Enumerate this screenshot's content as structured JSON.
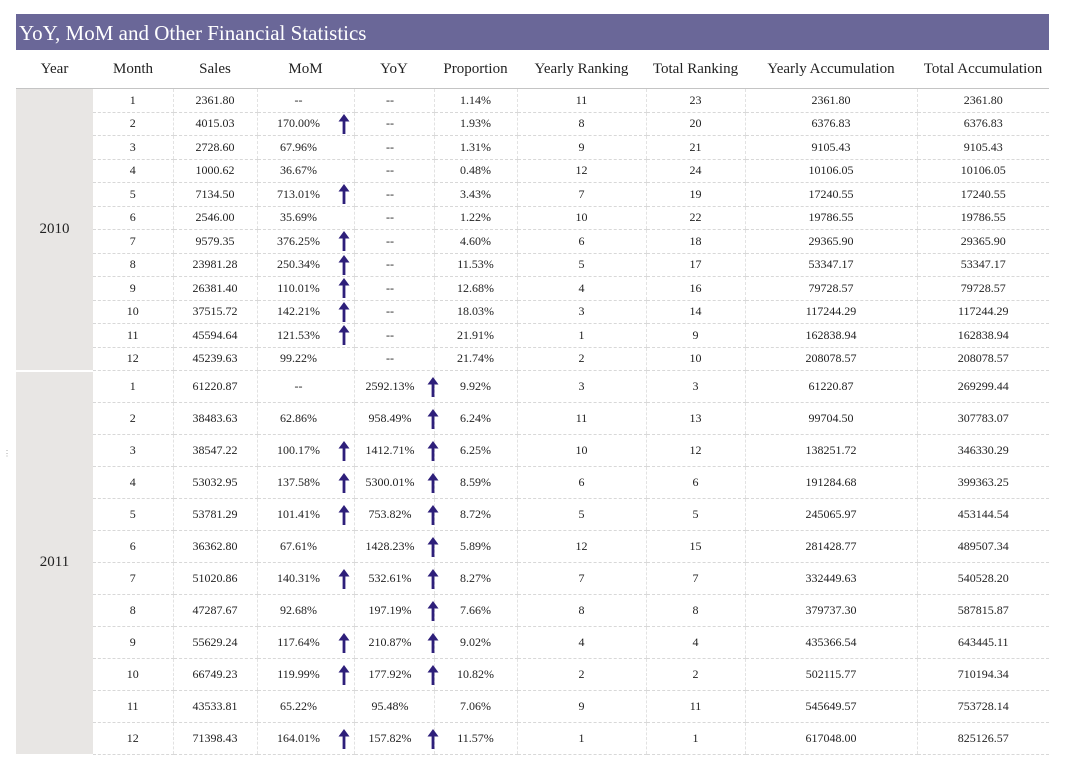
{
  "title": "YoY, MoM and Other Financial Statistics",
  "colors": {
    "header_bg": "#6a6798",
    "year_cell_bg": "#e8e6e4",
    "arrow": "#2e1f7a"
  },
  "columns": [
    "Year",
    "Month",
    "Sales",
    "MoM",
    "YoY",
    "Proportion",
    "Yearly Ranking",
    "Total Ranking",
    "Yearly Accumulation",
    "Total Accumulation"
  ],
  "arrow_icon": "arrow-up-icon",
  "years": [
    {
      "year": "2010",
      "rows": [
        {
          "month": "1",
          "sales": "2361.80",
          "mom": "--",
          "mom_up": false,
          "yoy": "--",
          "yoy_up": false,
          "proportion": "1.14%",
          "yearly_rank": "11",
          "total_rank": "23",
          "yearly_acc": "2361.80",
          "total_acc": "2361.80"
        },
        {
          "month": "2",
          "sales": "4015.03",
          "mom": "170.00%",
          "mom_up": true,
          "yoy": "--",
          "yoy_up": false,
          "proportion": "1.93%",
          "yearly_rank": "8",
          "total_rank": "20",
          "yearly_acc": "6376.83",
          "total_acc": "6376.83"
        },
        {
          "month": "3",
          "sales": "2728.60",
          "mom": "67.96%",
          "mom_up": false,
          "yoy": "--",
          "yoy_up": false,
          "proportion": "1.31%",
          "yearly_rank": "9",
          "total_rank": "21",
          "yearly_acc": "9105.43",
          "total_acc": "9105.43"
        },
        {
          "month": "4",
          "sales": "1000.62",
          "mom": "36.67%",
          "mom_up": false,
          "yoy": "--",
          "yoy_up": false,
          "proportion": "0.48%",
          "yearly_rank": "12",
          "total_rank": "24",
          "yearly_acc": "10106.05",
          "total_acc": "10106.05"
        },
        {
          "month": "5",
          "sales": "7134.50",
          "mom": "713.01%",
          "mom_up": true,
          "yoy": "--",
          "yoy_up": false,
          "proportion": "3.43%",
          "yearly_rank": "7",
          "total_rank": "19",
          "yearly_acc": "17240.55",
          "total_acc": "17240.55"
        },
        {
          "month": "6",
          "sales": "2546.00",
          "mom": "35.69%",
          "mom_up": false,
          "yoy": "--",
          "yoy_up": false,
          "proportion": "1.22%",
          "yearly_rank": "10",
          "total_rank": "22",
          "yearly_acc": "19786.55",
          "total_acc": "19786.55"
        },
        {
          "month": "7",
          "sales": "9579.35",
          "mom": "376.25%",
          "mom_up": true,
          "yoy": "--",
          "yoy_up": false,
          "proportion": "4.60%",
          "yearly_rank": "6",
          "total_rank": "18",
          "yearly_acc": "29365.90",
          "total_acc": "29365.90"
        },
        {
          "month": "8",
          "sales": "23981.28",
          "mom": "250.34%",
          "mom_up": true,
          "yoy": "--",
          "yoy_up": false,
          "proportion": "11.53%",
          "yearly_rank": "5",
          "total_rank": "17",
          "yearly_acc": "53347.17",
          "total_acc": "53347.17"
        },
        {
          "month": "9",
          "sales": "26381.40",
          "mom": "110.01%",
          "mom_up": true,
          "yoy": "--",
          "yoy_up": false,
          "proportion": "12.68%",
          "yearly_rank": "4",
          "total_rank": "16",
          "yearly_acc": "79728.57",
          "total_acc": "79728.57"
        },
        {
          "month": "10",
          "sales": "37515.72",
          "mom": "142.21%",
          "mom_up": true,
          "yoy": "--",
          "yoy_up": false,
          "proportion": "18.03%",
          "yearly_rank": "3",
          "total_rank": "14",
          "yearly_acc": "117244.29",
          "total_acc": "117244.29"
        },
        {
          "month": "11",
          "sales": "45594.64",
          "mom": "121.53%",
          "mom_up": true,
          "yoy": "--",
          "yoy_up": false,
          "proportion": "21.91%",
          "yearly_rank": "1",
          "total_rank": "9",
          "yearly_acc": "162838.94",
          "total_acc": "162838.94"
        },
        {
          "month": "12",
          "sales": "45239.63",
          "mom": "99.22%",
          "mom_up": false,
          "yoy": "--",
          "yoy_up": false,
          "proportion": "21.74%",
          "yearly_rank": "2",
          "total_rank": "10",
          "yearly_acc": "208078.57",
          "total_acc": "208078.57"
        }
      ]
    },
    {
      "year": "2011",
      "rows": [
        {
          "month": "1",
          "sales": "61220.87",
          "mom": "--",
          "mom_up": false,
          "yoy": "2592.13%",
          "yoy_up": true,
          "proportion": "9.92%",
          "yearly_rank": "3",
          "total_rank": "3",
          "yearly_acc": "61220.87",
          "total_acc": "269299.44"
        },
        {
          "month": "2",
          "sales": "38483.63",
          "mom": "62.86%",
          "mom_up": false,
          "yoy": "958.49%",
          "yoy_up": true,
          "proportion": "6.24%",
          "yearly_rank": "11",
          "total_rank": "13",
          "yearly_acc": "99704.50",
          "total_acc": "307783.07"
        },
        {
          "month": "3",
          "sales": "38547.22",
          "mom": "100.17%",
          "mom_up": true,
          "yoy": "1412.71%",
          "yoy_up": true,
          "proportion": "6.25%",
          "yearly_rank": "10",
          "total_rank": "12",
          "yearly_acc": "138251.72",
          "total_acc": "346330.29"
        },
        {
          "month": "4",
          "sales": "53032.95",
          "mom": "137.58%",
          "mom_up": true,
          "yoy": "5300.01%",
          "yoy_up": true,
          "proportion": "8.59%",
          "yearly_rank": "6",
          "total_rank": "6",
          "yearly_acc": "191284.68",
          "total_acc": "399363.25"
        },
        {
          "month": "5",
          "sales": "53781.29",
          "mom": "101.41%",
          "mom_up": true,
          "yoy": "753.82%",
          "yoy_up": true,
          "proportion": "8.72%",
          "yearly_rank": "5",
          "total_rank": "5",
          "yearly_acc": "245065.97",
          "total_acc": "453144.54"
        },
        {
          "month": "6",
          "sales": "36362.80",
          "mom": "67.61%",
          "mom_up": false,
          "yoy": "1428.23%",
          "yoy_up": true,
          "proportion": "5.89%",
          "yearly_rank": "12",
          "total_rank": "15",
          "yearly_acc": "281428.77",
          "total_acc": "489507.34"
        },
        {
          "month": "7",
          "sales": "51020.86",
          "mom": "140.31%",
          "mom_up": true,
          "yoy": "532.61%",
          "yoy_up": true,
          "proportion": "8.27%",
          "yearly_rank": "7",
          "total_rank": "7",
          "yearly_acc": "332449.63",
          "total_acc": "540528.20"
        },
        {
          "month": "8",
          "sales": "47287.67",
          "mom": "92.68%",
          "mom_up": false,
          "yoy": "197.19%",
          "yoy_up": true,
          "proportion": "7.66%",
          "yearly_rank": "8",
          "total_rank": "8",
          "yearly_acc": "379737.30",
          "total_acc": "587815.87"
        },
        {
          "month": "9",
          "sales": "55629.24",
          "mom": "117.64%",
          "mom_up": true,
          "yoy": "210.87%",
          "yoy_up": true,
          "proportion": "9.02%",
          "yearly_rank": "4",
          "total_rank": "4",
          "yearly_acc": "435366.54",
          "total_acc": "643445.11"
        },
        {
          "month": "10",
          "sales": "66749.23",
          "mom": "119.99%",
          "mom_up": true,
          "yoy": "177.92%",
          "yoy_up": true,
          "proportion": "10.82%",
          "yearly_rank": "2",
          "total_rank": "2",
          "yearly_acc": "502115.77",
          "total_acc": "710194.34"
        },
        {
          "month": "11",
          "sales": "43533.81",
          "mom": "65.22%",
          "mom_up": false,
          "yoy": "95.48%",
          "yoy_up": false,
          "proportion": "7.06%",
          "yearly_rank": "9",
          "total_rank": "11",
          "yearly_acc": "545649.57",
          "total_acc": "753728.14"
        },
        {
          "month": "12",
          "sales": "71398.43",
          "mom": "164.01%",
          "mom_up": true,
          "yoy": "157.82%",
          "yoy_up": true,
          "proportion": "11.57%",
          "yearly_rank": "1",
          "total_rank": "1",
          "yearly_acc": "617048.00",
          "total_acc": "825126.57"
        }
      ]
    }
  ]
}
